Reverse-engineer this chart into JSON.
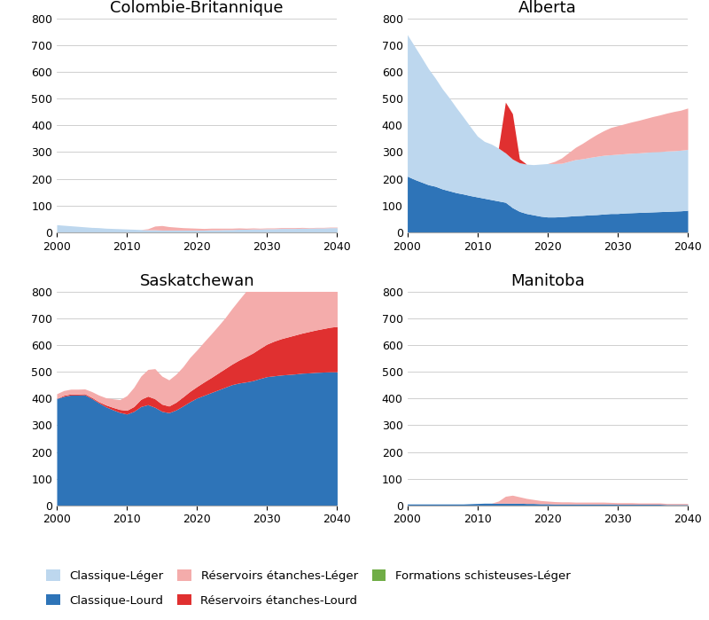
{
  "years": [
    2000,
    2001,
    2002,
    2003,
    2004,
    2005,
    2006,
    2007,
    2008,
    2009,
    2010,
    2011,
    2012,
    2013,
    2014,
    2015,
    2016,
    2017,
    2018,
    2019,
    2020,
    2021,
    2022,
    2023,
    2024,
    2025,
    2026,
    2027,
    2028,
    2029,
    2030,
    2031,
    2032,
    2033,
    2034,
    2035,
    2036,
    2037,
    2038,
    2039,
    2040
  ],
  "BC": {
    "classique_leger": [
      28,
      26,
      24,
      22,
      20,
      18,
      17,
      15,
      14,
      13,
      12,
      11,
      10,
      9,
      9,
      8,
      8,
      8,
      8,
      8,
      8,
      8,
      9,
      9,
      10,
      10,
      11,
      11,
      12,
      12,
      13,
      13,
      14,
      14,
      14,
      15,
      15,
      16,
      16,
      17,
      17
    ],
    "classique_lourd": [
      0,
      0,
      0,
      0,
      0,
      0,
      0,
      0,
      0,
      0,
      0,
      0,
      0,
      0,
      0,
      0,
      0,
      0,
      0,
      0,
      0,
      0,
      0,
      0,
      0,
      0,
      0,
      0,
      0,
      0,
      0,
      0,
      0,
      0,
      0,
      0,
      0,
      0,
      0,
      0,
      0
    ],
    "reservoirs_etanches_leger": [
      0,
      0,
      0,
      0,
      0,
      0,
      0,
      0,
      0,
      0,
      0,
      0,
      0,
      4,
      14,
      17,
      13,
      11,
      9,
      8,
      7,
      6,
      6,
      6,
      5,
      5,
      5,
      4,
      4,
      3,
      3,
      3,
      3,
      3,
      3,
      3,
      2,
      2,
      2,
      2,
      2
    ],
    "reservoirs_etanches_lourd": [
      0,
      0,
      0,
      0,
      0,
      0,
      0,
      0,
      0,
      0,
      0,
      0,
      0,
      0,
      0,
      0,
      0,
      0,
      0,
      0,
      0,
      0,
      0,
      0,
      0,
      0,
      0,
      0,
      0,
      0,
      0,
      0,
      0,
      0,
      0,
      0,
      0,
      0,
      0,
      0,
      0
    ],
    "formations_schisteuses_leger": [
      0,
      0,
      0,
      0,
      0,
      0,
      0,
      0,
      0,
      0,
      0,
      0,
      0,
      0,
      0,
      0,
      0,
      0,
      0,
      0,
      0,
      0,
      0,
      0,
      0,
      0,
      0,
      0,
      0,
      0,
      0,
      0,
      0,
      0,
      0,
      0,
      0,
      0,
      0,
      0,
      0
    ]
  },
  "AB": {
    "classique_leger": [
      530,
      500,
      468,
      435,
      405,
      375,
      348,
      318,
      288,
      258,
      228,
      213,
      208,
      198,
      185,
      182,
      182,
      185,
      188,
      195,
      200,
      200,
      200,
      205,
      210,
      212,
      215,
      218,
      220,
      220,
      222,
      222,
      223,
      223,
      224,
      225,
      225,
      226,
      226,
      227,
      228
    ],
    "classique_lourd": [
      210,
      198,
      188,
      178,
      172,
      162,
      155,
      148,
      143,
      137,
      132,
      127,
      122,
      117,
      112,
      92,
      78,
      70,
      65,
      60,
      57,
      57,
      58,
      60,
      62,
      63,
      65,
      66,
      68,
      70,
      70,
      72,
      73,
      74,
      75,
      76,
      77,
      78,
      79,
      80,
      82
    ],
    "reservoirs_etanches_leger": [
      0,
      0,
      0,
      0,
      0,
      0,
      0,
      0,
      0,
      0,
      0,
      0,
      0,
      0,
      0,
      0,
      0,
      0,
      0,
      0,
      0,
      8,
      20,
      33,
      46,
      58,
      70,
      82,
      92,
      102,
      107,
      112,
      117,
      122,
      127,
      132,
      137,
      142,
      147,
      150,
      155
    ],
    "reservoirs_etanches_lourd": [
      0,
      0,
      0,
      0,
      0,
      0,
      0,
      0,
      0,
      0,
      0,
      0,
      0,
      0,
      190,
      170,
      15,
      0,
      0,
      0,
      0,
      0,
      0,
      0,
      0,
      0,
      0,
      0,
      0,
      0,
      0,
      0,
      0,
      0,
      0,
      0,
      0,
      0,
      0,
      0,
      0
    ],
    "formations_schisteuses_leger": [
      0,
      0,
      0,
      0,
      0,
      0,
      0,
      0,
      0,
      0,
      0,
      0,
      0,
      0,
      0,
      0,
      0,
      0,
      0,
      0,
      0,
      0,
      0,
      0,
      0,
      0,
      0,
      0,
      0,
      0,
      0,
      0,
      0,
      0,
      0,
      0,
      0,
      0,
      0,
      0,
      0
    ]
  },
  "SK": {
    "classique_leger": [
      0,
      0,
      0,
      0,
      0,
      0,
      0,
      0,
      0,
      0,
      0,
      0,
      0,
      0,
      0,
      0,
      0,
      0,
      0,
      0,
      0,
      0,
      0,
      0,
      0,
      0,
      0,
      0,
      0,
      0,
      0,
      0,
      0,
      0,
      0,
      0,
      0,
      0,
      0,
      0,
      0
    ],
    "classique_lourd": [
      400,
      408,
      413,
      413,
      414,
      400,
      384,
      369,
      358,
      348,
      342,
      352,
      370,
      377,
      367,
      352,
      347,
      357,
      372,
      388,
      402,
      412,
      422,
      432,
      442,
      452,
      458,
      462,
      467,
      475,
      482,
      485,
      488,
      490,
      492,
      495,
      496,
      498,
      499,
      500,
      500
    ],
    "reservoirs_etanches_leger": [
      18,
      18,
      18,
      18,
      18,
      22,
      25,
      27,
      32,
      37,
      55,
      72,
      87,
      100,
      113,
      105,
      98,
      105,
      113,
      127,
      137,
      150,
      163,
      176,
      190,
      208,
      226,
      245,
      263,
      282,
      296,
      302,
      308,
      316,
      321,
      326,
      330,
      335,
      339,
      343,
      347
    ],
    "reservoirs_etanches_lourd": [
      0,
      4,
      4,
      4,
      4,
      4,
      4,
      7,
      9,
      11,
      14,
      18,
      27,
      32,
      32,
      27,
      25,
      29,
      34,
      39,
      43,
      50,
      56,
      63,
      70,
      77,
      86,
      95,
      104,
      113,
      122,
      130,
      136,
      141,
      146,
      150,
      155,
      159,
      163,
      167,
      170
    ],
    "formations_schisteuses_leger": [
      0,
      0,
      0,
      0,
      0,
      0,
      0,
      0,
      0,
      0,
      0,
      0,
      0,
      0,
      0,
      0,
      0,
      0,
      0,
      0,
      0,
      0,
      0,
      0,
      0,
      0,
      0,
      0,
      0,
      0,
      0,
      0,
      0,
      0,
      0,
      0,
      0,
      0,
      0,
      0,
      0
    ]
  },
  "MB": {
    "classique_leger": [
      0,
      0,
      0,
      0,
      0,
      0,
      0,
      0,
      0,
      0,
      0,
      0,
      0,
      0,
      0,
      0,
      0,
      0,
      0,
      0,
      0,
      0,
      0,
      0,
      0,
      0,
      0,
      0,
      0,
      0,
      0,
      0,
      0,
      0,
      0,
      0,
      0,
      0,
      0,
      0,
      0
    ],
    "classique_lourd": [
      5,
      5,
      5,
      5,
      5,
      5,
      5,
      5,
      5,
      6,
      7,
      8,
      8,
      8,
      8,
      8,
      8,
      7,
      7,
      6,
      6,
      5,
      5,
      5,
      5,
      5,
      5,
      5,
      5,
      5,
      4,
      4,
      4,
      4,
      4,
      4,
      4,
      3,
      3,
      3,
      3
    ],
    "reservoirs_etanches_leger": [
      0,
      0,
      0,
      0,
      0,
      0,
      0,
      0,
      0,
      0,
      0,
      0,
      0,
      8,
      26,
      30,
      24,
      19,
      15,
      12,
      10,
      9,
      8,
      8,
      7,
      7,
      7,
      7,
      7,
      6,
      6,
      6,
      6,
      5,
      5,
      5,
      5,
      4,
      4,
      4,
      4
    ],
    "reservoirs_etanches_lourd": [
      0,
      0,
      0,
      0,
      0,
      0,
      0,
      0,
      0,
      0,
      0,
      0,
      0,
      0,
      0,
      0,
      0,
      0,
      0,
      0,
      0,
      0,
      0,
      0,
      0,
      0,
      0,
      0,
      0,
      0,
      0,
      0,
      0,
      0,
      0,
      0,
      0,
      0,
      0,
      0,
      0
    ],
    "formations_schisteuses_leger": [
      0,
      0,
      0,
      0,
      0,
      0,
      0,
      0,
      0,
      0,
      0,
      0,
      0,
      0,
      0,
      0,
      0,
      0,
      0,
      0,
      0,
      0,
      0,
      0,
      0,
      0,
      0,
      0,
      0,
      0,
      0,
      0,
      0,
      0,
      0,
      0,
      0,
      0,
      0,
      0,
      0
    ]
  },
  "colors": {
    "classique_leger": "#BDD7EE",
    "classique_lourd": "#2E74B8",
    "reservoirs_etanches_leger": "#F4ACAB",
    "reservoirs_etanches_lourd": "#E03030",
    "formations_schisteuses_leger": "#70AD47"
  },
  "titles": [
    "Colombie-Britannique",
    "Alberta",
    "Saskatchewan",
    "Manitoba"
  ],
  "ylim": [
    0,
    800
  ],
  "yticks": [
    0,
    100,
    200,
    300,
    400,
    500,
    600,
    700,
    800
  ],
  "xlim": [
    2000,
    2040
  ],
  "xticks": [
    2000,
    2010,
    2020,
    2030,
    2040
  ],
  "legend_labels": [
    "Classique-Léger",
    "Réservoirs étanches-Léger",
    "Formations schisteuses-Léger",
    "Classique-Lourd",
    "Réservoirs étanches-Lourd"
  ],
  "legend_colors": [
    "#BDD7EE",
    "#F4ACAB",
    "#70AD47",
    "#2E74B8",
    "#E03030"
  ]
}
